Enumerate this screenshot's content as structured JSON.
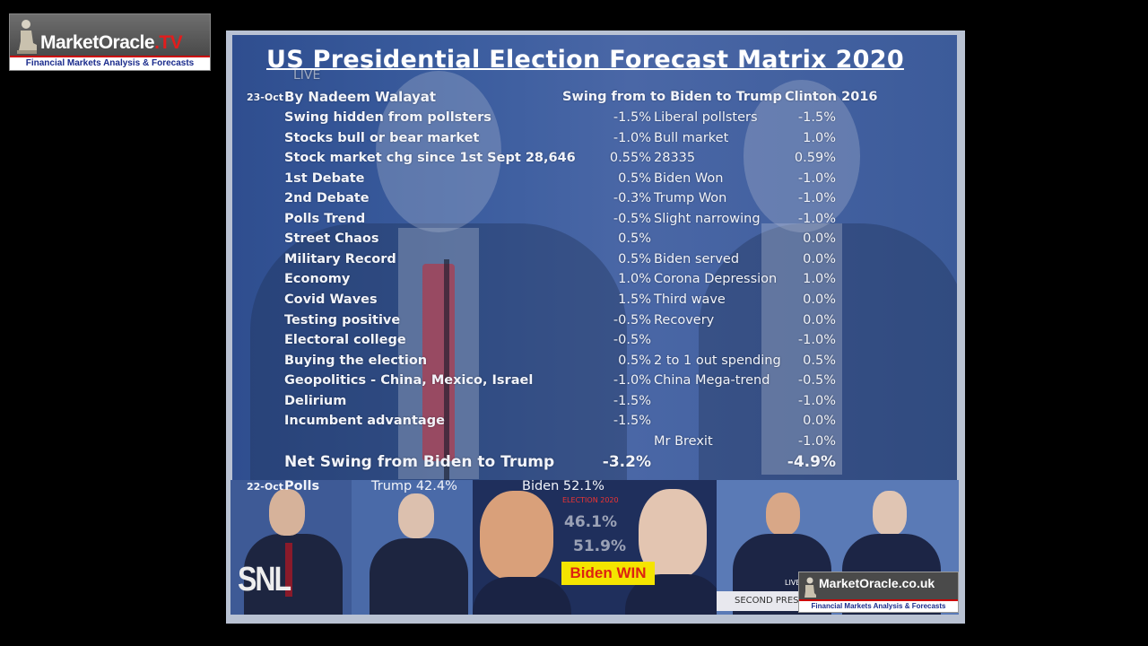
{
  "logo": {
    "brand": "MarketOracle",
    "brand_suffix": ".TV",
    "tagline": "Financial Markets Analysis & Forecasts"
  },
  "slide": {
    "title": "US Presidential Election Forecast Matrix 2020",
    "date": "23-Oct",
    "author": "By Nadeem Walayat",
    "col_swing_header": "Swing from to Biden to Trump",
    "col_clinton_header": "Clinton 2016",
    "live_text": "LIVE",
    "rows": [
      {
        "label": "Swing hidden from pollsters",
        "swing": "-1.5%",
        "note": "Liberal pollsters",
        "clinton": "-1.5%"
      },
      {
        "label": "Stocks bull or bear market",
        "swing": "-1.0%",
        "note": "Bull market",
        "clinton": "1.0%"
      },
      {
        "label": "Stock market chg since 1st Sept 28,646",
        "swing": "0.55%",
        "note": "28335",
        "clinton": "0.59%"
      },
      {
        "label": "1st Debate",
        "swing": "0.5%",
        "note": "Biden Won",
        "clinton": "-1.0%"
      },
      {
        "label": "2nd Debate",
        "swing": "-0.3%",
        "note": "Trump Won",
        "clinton": "-1.0%"
      },
      {
        "label": "Polls Trend",
        "swing": "-0.5%",
        "note": "Slight narrowing",
        "clinton": "-1.0%"
      },
      {
        "label": "Street Chaos",
        "swing": "0.5%",
        "note": "",
        "clinton": "0.0%"
      },
      {
        "label": "Military Record",
        "swing": "0.5%",
        "note": "Biden served",
        "clinton": "0.0%"
      },
      {
        "label": "Economy",
        "swing": "1.0%",
        "note": "Corona Depression",
        "clinton": "1.0%"
      },
      {
        "label": "Covid Waves",
        "swing": "1.5%",
        "note": "Third wave",
        "clinton": "0.0%"
      },
      {
        "label": "Testing positive",
        "swing": "-0.5%",
        "note": "Recovery",
        "clinton": "0.0%"
      },
      {
        "label": "Electoral college",
        "swing": "-0.5%",
        "note": "",
        "clinton": "-1.0%"
      },
      {
        "label": "Buying the election",
        "swing": "0.5%",
        "note": "2 to 1 out spending",
        "clinton": "0.5%"
      },
      {
        "label": "Geopolitics - China, Mexico, Israel",
        "swing": "-1.0%",
        "note": "China Mega-trend",
        "clinton": "-0.5%"
      },
      {
        "label": "Delirium",
        "swing": "-1.5%",
        "note": "",
        "clinton": "-1.0%"
      },
      {
        "label": "Incumbent advantage",
        "swing": "-1.5%",
        "note": "",
        "clinton": "0.0%"
      },
      {
        "label": "",
        "swing": "",
        "note": "Mr Brexit",
        "clinton": "-1.0%"
      }
    ],
    "net_label": "Net Swing from Biden to Trump",
    "net_swing": "-3.2%",
    "net_clinton": "-4.9%"
  },
  "strip": {
    "date": "22-Oct",
    "polls_label": "Polls",
    "trump_poll": "Trump 42.4%",
    "biden_poll": "Biden 52.1%",
    "snl": "SNL",
    "election_tag": "ELECTION 2020",
    "trump_pct": "46.1%",
    "biden_pct": "51.9%",
    "win_text": "Biden WIN",
    "live_small": "LIVE",
    "second_pres": "SECOND PRES",
    "mo_brand": "MarketOracle.co.uk",
    "mo_tagline": "Financial Markets Analysis & Forecasts"
  }
}
